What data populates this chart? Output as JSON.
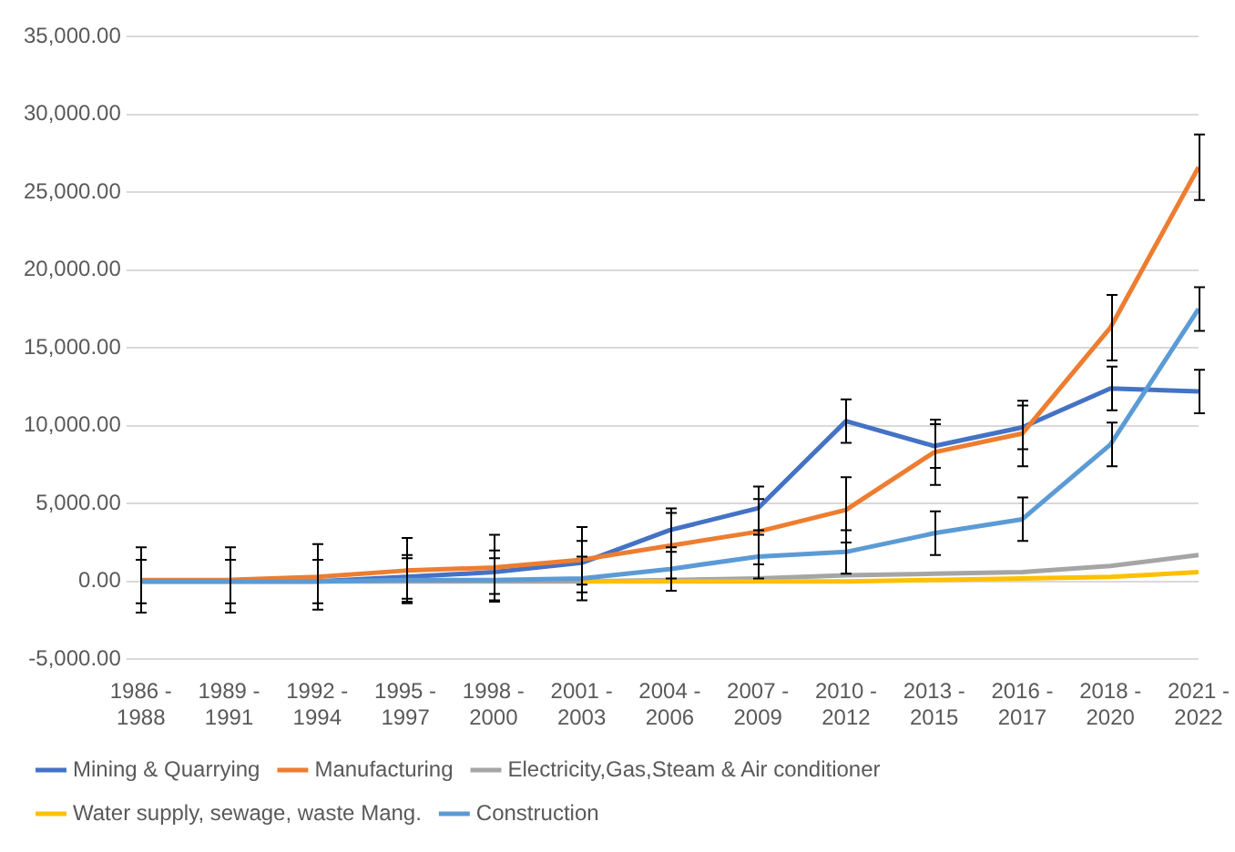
{
  "chart_data": {
    "type": "line",
    "categories": [
      "1986 - 1988",
      "1989 - 1991",
      "1992 - 1994",
      "1995 - 1997",
      "1998 - 2000",
      "2001 - 2003",
      "2004 - 2006",
      "2007 - 2009",
      "2010 - 2012",
      "2013 - 2015",
      "2016 - 2017",
      "2018 - 2020",
      "2021 - 2022"
    ],
    "series": [
      {
        "name": "Mining & Quarrying",
        "color": "#4472c4",
        "values": [
          0,
          0,
          0,
          300,
          600,
          1200,
          3300,
          4700,
          10300,
          8700,
          9900,
          12400,
          12200
        ],
        "errors": [
          1400,
          1400,
          1400,
          1400,
          1400,
          1400,
          1400,
          1400,
          1400,
          1400,
          1400,
          1400,
          1400
        ]
      },
      {
        "name": "Manufacturing",
        "color": "#ed7d31",
        "values": [
          100,
          100,
          300,
          700,
          900,
          1400,
          2300,
          3200,
          4600,
          8300,
          9500,
          16300,
          26600
        ],
        "errors": [
          2100,
          2100,
          2100,
          2100,
          2100,
          2100,
          2100,
          2100,
          2100,
          2100,
          2100,
          2100,
          2100
        ]
      },
      {
        "name": "Electricity,Gas,Steam & Air conditioner",
        "color": "#a5a5a5",
        "values": [
          0,
          0,
          0,
          0,
          0,
          0,
          100,
          200,
          400,
          500,
          600,
          1000,
          1700
        ]
      },
      {
        "name": "Water supply, sewage, waste Mang.",
        "color": "#ffc000",
        "values": [
          null,
          null,
          null,
          null,
          null,
          0,
          0,
          0,
          0,
          100,
          200,
          300,
          600
        ]
      },
      {
        "name": "Construction",
        "color": "#5b9bd5",
        "values": [
          0,
          0,
          0,
          100,
          100,
          200,
          800,
          1600,
          1900,
          3100,
          4000,
          8800,
          17500
        ],
        "errors": [
          null,
          null,
          null,
          1400,
          1400,
          1400,
          1400,
          1400,
          1400,
          1400,
          1400,
          1400,
          1400
        ]
      }
    ],
    "ylim": [
      -5000,
      35000
    ],
    "yticks": [
      {
        "value": -5000,
        "label": "-5,000.00"
      },
      {
        "value": 0,
        "label": "0.00"
      },
      {
        "value": 5000,
        "label": "5,000.00"
      },
      {
        "value": 10000,
        "label": "10,000.00"
      },
      {
        "value": 15000,
        "label": "15,000.00"
      },
      {
        "value": 20000,
        "label": "20,000.00"
      },
      {
        "value": 25000,
        "label": "25,000.00"
      },
      {
        "value": 30000,
        "label": "30,000.00"
      },
      {
        "value": 35000,
        "label": "35,000.00"
      }
    ],
    "grid": "y",
    "legend": "bottom",
    "marker": "none",
    "line_style": "solid"
  }
}
